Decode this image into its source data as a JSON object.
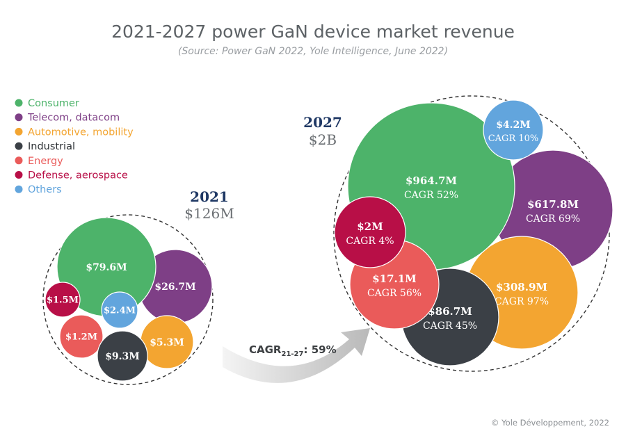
{
  "title": "2021-2027 power GaN device market revenue",
  "subtitle": "(Source: Power GaN 2022, Yole Intelligence, June 2022)",
  "copyright": "© Yole Développement, 2022",
  "legend": [
    {
      "label": "Consumer",
      "color": "#4db36a"
    },
    {
      "label": "Telecom, datacom",
      "color": "#7e3f86"
    },
    {
      "label": "Automotive, mobility",
      "color": "#f3a531"
    },
    {
      "label": "Industrial",
      "color": "#3b4046"
    },
    {
      "label": "Energy",
      "color": "#ea5b5a"
    },
    {
      "label": "Defense, aerospace",
      "color": "#b80f47"
    },
    {
      "label": "Others",
      "color": "#62a5dd"
    }
  ],
  "growth_label": {
    "prefix": "CAGR",
    "subscript": "21-27",
    "suffix": ": 59%"
  },
  "chart_data": [
    {
      "type": "bubble",
      "year": "2021",
      "total": "$126M",
      "series": [
        {
          "name": "Consumer",
          "value_label": "$79.6M",
          "value": 79.6
        },
        {
          "name": "Telecom, datacom",
          "value_label": "$26.7M",
          "value": 26.7
        },
        {
          "name": "Defense, aerospace",
          "value_label": "$1.5M",
          "value": 1.5
        },
        {
          "name": "Others",
          "value_label": "$2.4M",
          "value": 2.4
        },
        {
          "name": "Energy",
          "value_label": "$1.2M",
          "value": 1.2
        },
        {
          "name": "Automotive, mobility",
          "value_label": "$5.3M",
          "value": 5.3
        },
        {
          "name": "Industrial",
          "value_label": "$9.3M",
          "value": 9.3
        }
      ]
    },
    {
      "type": "bubble",
      "year": "2027",
      "total": "$2B",
      "series": [
        {
          "name": "Consumer",
          "value_label": "$964.7M",
          "value": 964.7,
          "cagr": "CAGR 52%"
        },
        {
          "name": "Others",
          "value_label": "$4.2M",
          "value": 4.2,
          "cagr": "CAGR 10%"
        },
        {
          "name": "Telecom, datacom",
          "value_label": "$617.8M",
          "value": 617.8,
          "cagr": "CAGR 69%"
        },
        {
          "name": "Defense, aerospace",
          "value_label": "$2M",
          "value": 2,
          "cagr": "CAGR 4%"
        },
        {
          "name": "Energy",
          "value_label": "$17.1M",
          "value": 17.1,
          "cagr": "CAGR 56%"
        },
        {
          "name": "Automotive, mobility",
          "value_label": "$308.9M",
          "value": 308.9,
          "cagr": "CAGR 97%"
        },
        {
          "name": "Industrial",
          "value_label": "$86.7M",
          "value": 86.7,
          "cagr": "CAGR 45%"
        }
      ]
    }
  ]
}
